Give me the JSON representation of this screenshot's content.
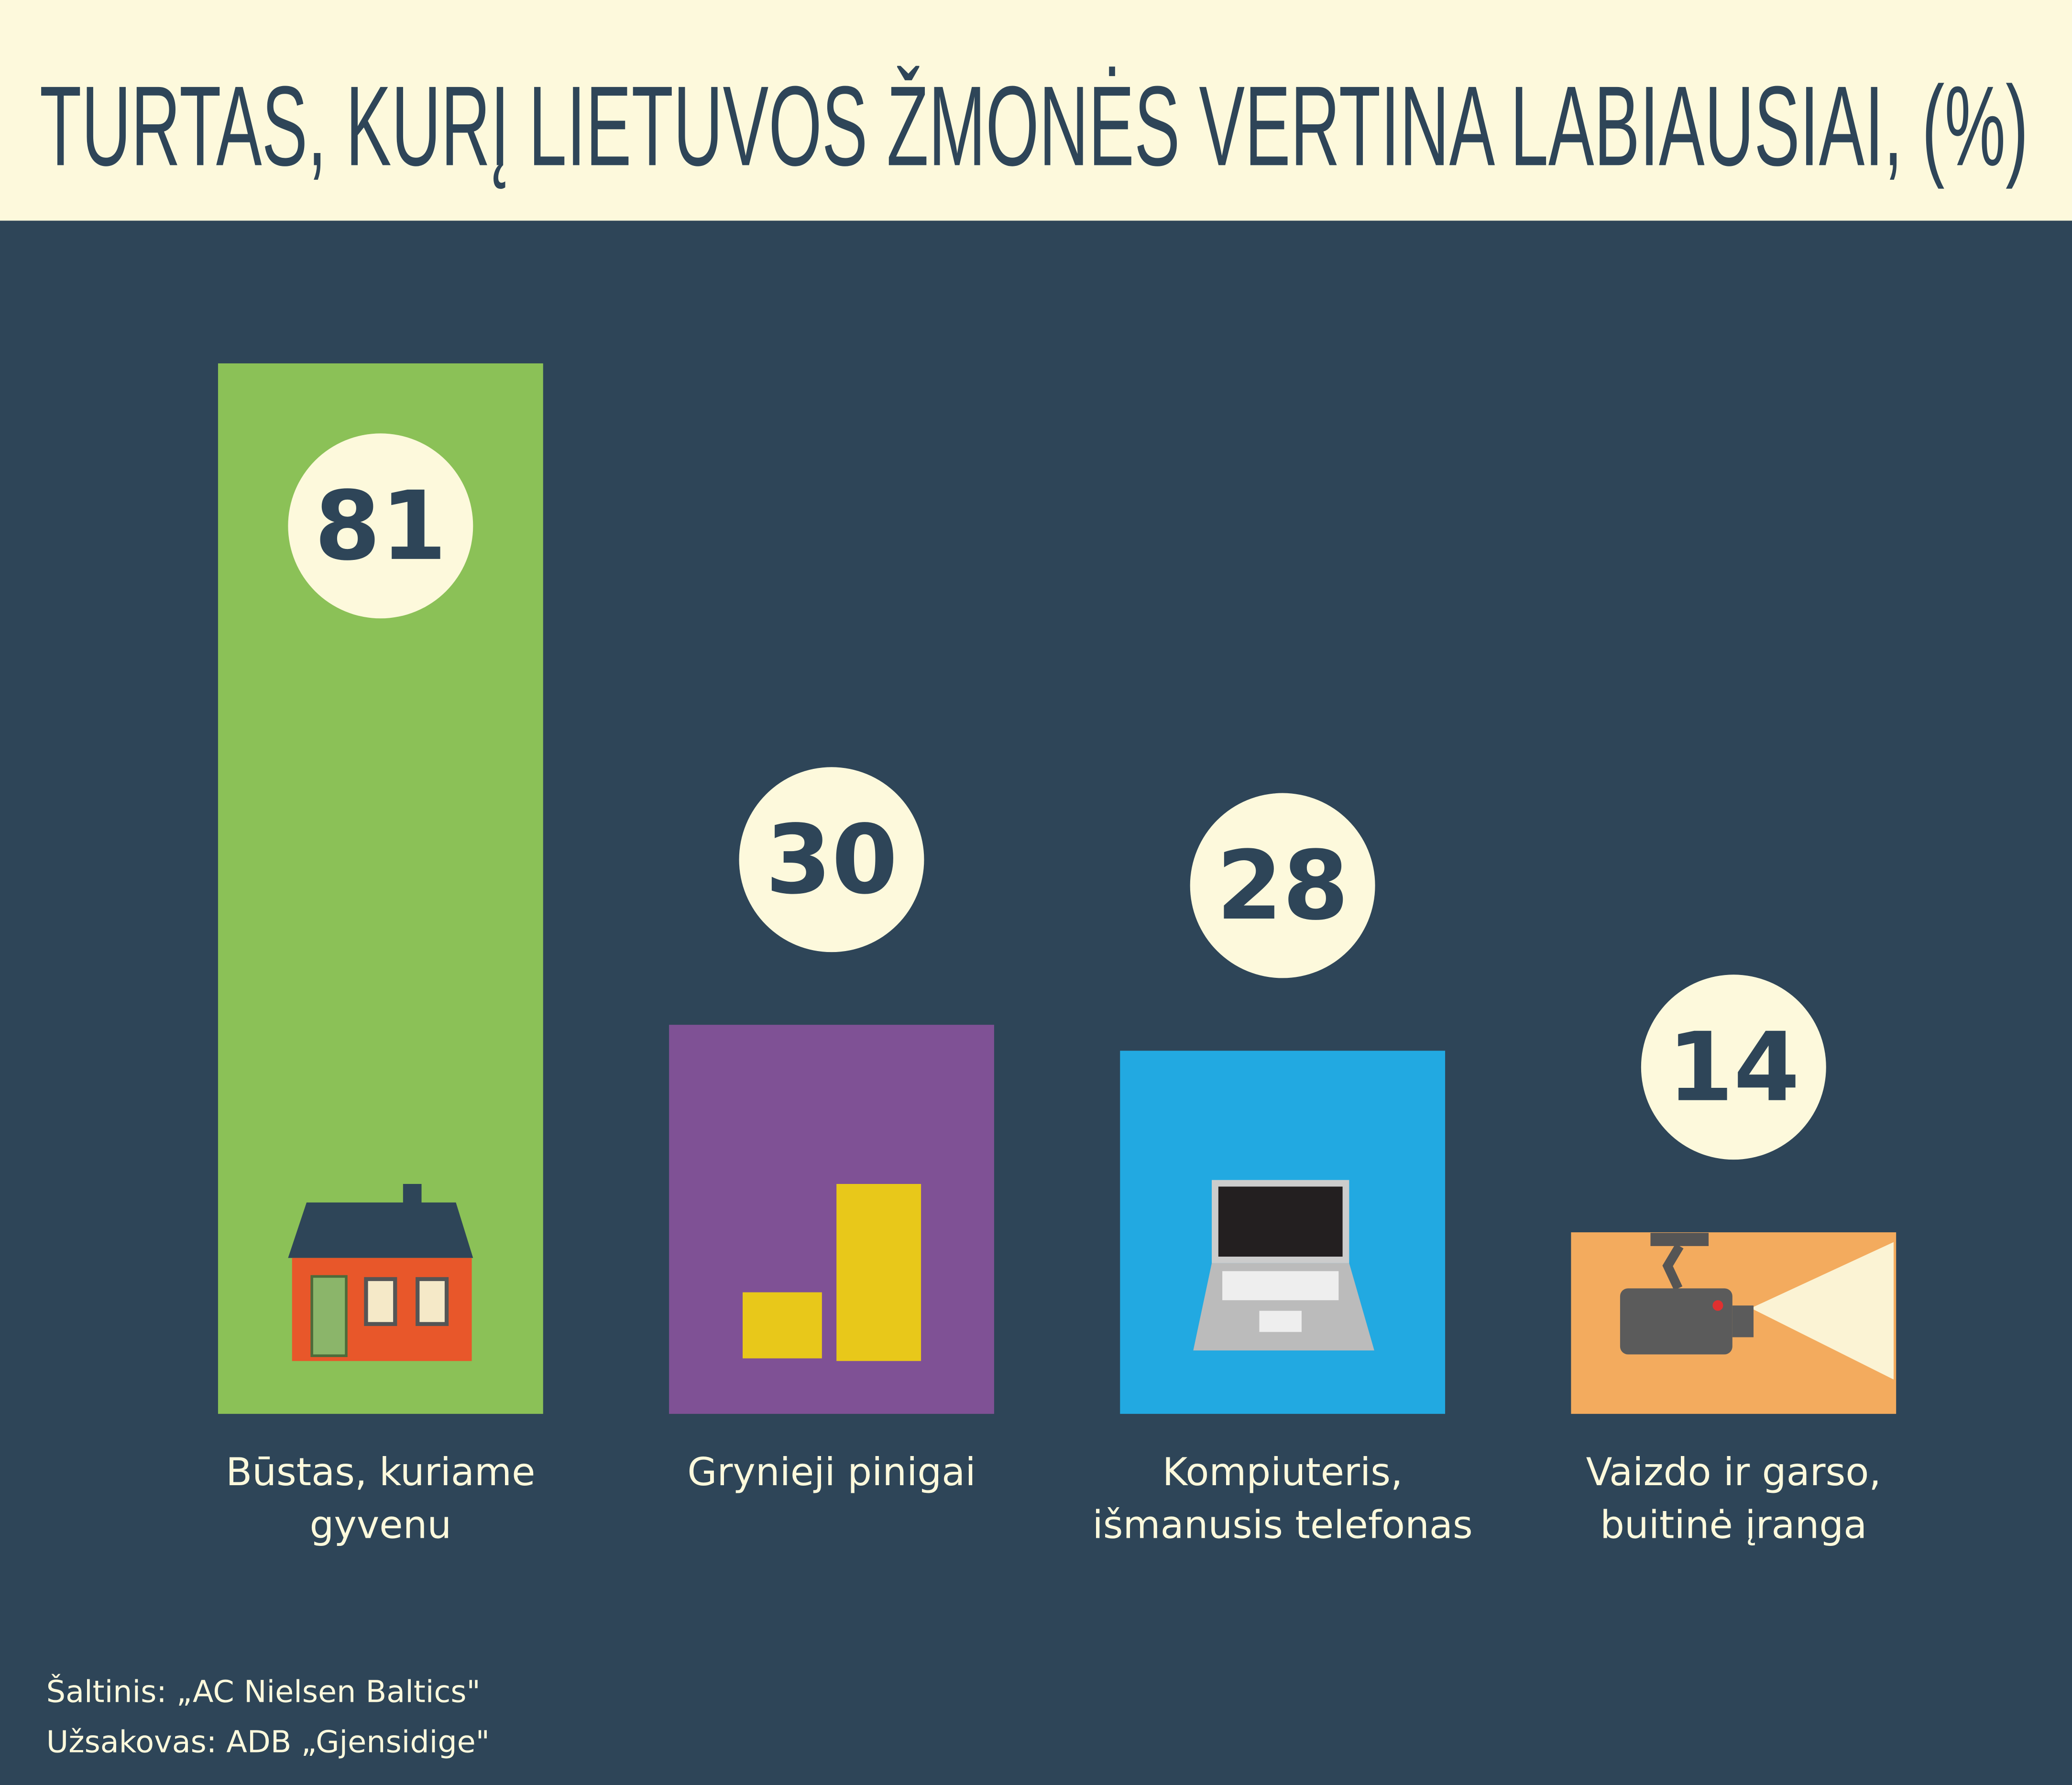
{
  "chart_data": {
    "type": "bar",
    "title": "TURTAS, KURĮ LIETUVOS ŽMONĖS VERTINA LABIAUSIAI, (%)",
    "categories": [
      "Būstas, kuriame\ngyvenu",
      "Grynieji pinigai",
      "Kompiuteris,\nišmanusis telefonas",
      "Vaizdo ir garso,\nbuitinė įranga"
    ],
    "values": [
      81,
      30,
      28,
      14
    ],
    "colors": [
      "#8bc157",
      "#7f5195",
      "#22a9e1",
      "#f3ab5e"
    ],
    "source": "Šaltinis: „AC Nielsen Baltics\"",
    "sponsor": "Užsakovas: ADB „Gjensidige\""
  }
}
